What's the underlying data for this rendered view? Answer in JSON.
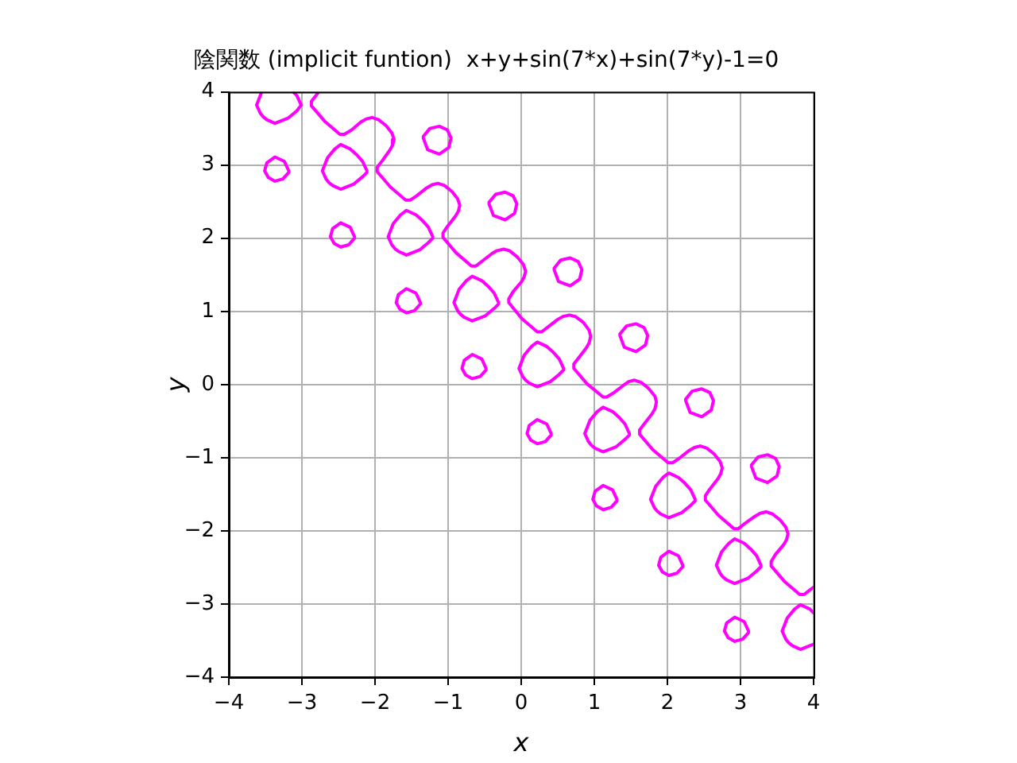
{
  "chart_data": {
    "type": "line",
    "title": "陰関数 (implicit funtion)  x+y+sin(7*x)+sin(7*y)-1=0",
    "xlabel": "x",
    "ylabel": "y",
    "xlim": [
      -4,
      4
    ],
    "ylim": [
      -4,
      4
    ],
    "xticks": [
      {
        "value": -4,
        "label": "−4"
      },
      {
        "value": -3,
        "label": "−3"
      },
      {
        "value": -2,
        "label": "−2"
      },
      {
        "value": -1,
        "label": "−1"
      },
      0,
      1,
      2,
      3,
      4
    ],
    "yticks": [
      {
        "value": -4,
        "label": "−4"
      },
      {
        "value": -3,
        "label": "−3"
      },
      {
        "value": -2,
        "label": "−2"
      },
      {
        "value": -1,
        "label": "−1"
      },
      0,
      1,
      2,
      3,
      4
    ],
    "grid": true,
    "marker": "none",
    "line_style": "solid",
    "series": [
      {
        "color": "#ff00ff",
        "x": [
          -2.77,
          -2.8,
          -2.87,
          -2.87,
          -2.69,
          -2.48,
          -2.42,
          -2.32,
          -2.19,
          -2.12,
          -2.04,
          -1.95,
          -1.85,
          -1.77,
          -1.74,
          -1.76,
          -1.8,
          -1.9,
          -1.97,
          -1.97,
          -1.79,
          -1.58,
          -1.52,
          -1.43,
          -1.29,
          -1.22,
          -1.14,
          -1.05,
          -0.95,
          -0.87,
          -0.84,
          -0.86,
          -0.9,
          -1.01,
          -1.07,
          -1.07,
          -0.89,
          -0.68,
          -0.62,
          -0.53,
          -0.4,
          -0.33,
          -0.24,
          -0.16,
          -0.05,
          0.03,
          0.06,
          0.04,
          0.0,
          -0.11,
          -0.17,
          -0.17,
          0.01,
          0.22,
          0.28,
          0.37,
          0.5,
          0.57,
          0.66,
          0.74,
          0.85,
          0.93,
          0.95,
          0.93,
          0.89,
          0.79,
          0.72,
          0.72,
          0.9,
          1.12,
          1.17,
          1.27,
          1.4,
          1.47,
          1.55,
          1.64,
          1.74,
          1.83,
          1.85,
          1.83,
          1.79,
          1.69,
          1.62,
          1.62,
          1.8,
          2.01,
          2.07,
          2.16,
          2.3,
          2.37,
          2.45,
          2.54,
          2.64,
          2.72,
          2.75,
          2.73,
          2.69,
          2.58,
          2.52,
          2.52,
          2.7,
          2.91,
          2.97,
          3.06,
          3.2,
          3.27,
          3.35,
          3.44,
          3.54,
          3.62,
          3.65,
          3.63,
          3.59,
          3.48,
          3.42,
          3.42,
          3.6,
          3.81,
          3.87,
          3.96,
          4.0
        ],
        "values": [
          4.0,
          3.96,
          3.87,
          3.81,
          3.6,
          3.42,
          3.42,
          3.48,
          3.59,
          3.63,
          3.65,
          3.62,
          3.54,
          3.44,
          3.35,
          3.27,
          3.2,
          3.06,
          2.97,
          2.91,
          2.7,
          2.52,
          2.52,
          2.58,
          2.69,
          2.73,
          2.75,
          2.72,
          2.64,
          2.54,
          2.45,
          2.37,
          2.3,
          2.16,
          2.07,
          2.01,
          1.8,
          1.62,
          1.62,
          1.69,
          1.79,
          1.83,
          1.85,
          1.83,
          1.74,
          1.64,
          1.55,
          1.47,
          1.4,
          1.27,
          1.17,
          1.12,
          0.9,
          0.72,
          0.72,
          0.79,
          0.89,
          0.93,
          0.95,
          0.93,
          0.85,
          0.74,
          0.66,
          0.57,
          0.5,
          0.37,
          0.28,
          0.22,
          0.01,
          -0.17,
          -0.17,
          -0.11,
          -0.01,
          0.04,
          0.06,
          0.03,
          -0.05,
          -0.16,
          -0.24,
          -0.33,
          -0.4,
          -0.53,
          -0.62,
          -0.68,
          -0.89,
          -1.07,
          -1.07,
          -1.01,
          -0.9,
          -0.86,
          -0.84,
          -0.87,
          -0.95,
          -1.05,
          -1.14,
          -1.22,
          -1.29,
          -1.43,
          -1.52,
          -1.58,
          -1.79,
          -1.97,
          -1.97,
          -1.9,
          -1.8,
          -1.76,
          -1.74,
          -1.77,
          -1.85,
          -1.95,
          -2.04,
          -2.12,
          -2.19,
          -2.32,
          -2.42,
          -2.48,
          -2.69,
          -2.87,
          -2.87,
          -2.8,
          -2.77
        ]
      },
      {
        "color": "#ff00ff",
        "x": [
          -3.55,
          -3.62,
          -3.57,
          -3.53,
          -3.48,
          -3.37,
          -3.19,
          -3.07,
          -3.01,
          -3.07,
          -3.12
        ],
        "values": [
          4.0,
          3.82,
          3.71,
          3.66,
          3.62,
          3.57,
          3.64,
          3.74,
          3.82,
          3.95,
          4.0
        ]
      },
      {
        "color": "#ff00ff",
        "x": [
          -2.11,
          -2.17,
          -2.25,
          -2.34,
          -2.47,
          -2.55,
          -2.65,
          -2.72,
          -2.67,
          -2.63,
          -2.58,
          -2.47,
          -2.29,
          -2.17,
          -2.11
        ],
        "values": [
          2.92,
          3.05,
          3.14,
          3.22,
          3.28,
          3.22,
          3.1,
          2.92,
          2.81,
          2.76,
          2.72,
          2.67,
          2.74,
          2.84,
          2.9
        ]
      },
      {
        "color": "#ff00ff",
        "x": [
          -1.21,
          -1.27,
          -1.35,
          -1.44,
          -1.57,
          -1.65,
          -1.75,
          -1.82,
          -1.77,
          -1.73,
          -1.68,
          -1.57,
          -1.39,
          -1.27,
          -1.21
        ],
        "values": [
          2.02,
          2.15,
          2.24,
          2.32,
          2.38,
          2.32,
          2.2,
          2.02,
          1.91,
          1.86,
          1.82,
          1.77,
          1.84,
          1.94,
          2.0
        ]
      },
      {
        "color": "#ff00ff",
        "x": [
          -0.31,
          -0.37,
          -0.45,
          -0.54,
          -0.67,
          -0.75,
          -0.85,
          -0.92,
          -0.87,
          -0.83,
          -0.78,
          -0.67,
          -0.49,
          -0.37,
          -0.31
        ],
        "values": [
          1.12,
          1.25,
          1.34,
          1.42,
          1.48,
          1.42,
          1.3,
          1.12,
          1.01,
          0.96,
          0.92,
          0.87,
          0.94,
          1.04,
          1.1
        ]
      },
      {
        "color": "#ff00ff",
        "x": [
          0.58,
          0.52,
          0.44,
          0.35,
          0.22,
          0.14,
          0.04,
          -0.03,
          0.02,
          0.06,
          0.11,
          0.22,
          0.4,
          0.52,
          0.58
        ],
        "values": [
          0.22,
          0.35,
          0.44,
          0.52,
          0.58,
          0.52,
          0.4,
          0.22,
          0.11,
          0.06,
          0.02,
          -0.03,
          0.04,
          0.14,
          0.2
        ]
      },
      {
        "color": "#ff00ff",
        "x": [
          1.48,
          1.42,
          1.34,
          1.25,
          1.12,
          1.04,
          0.94,
          0.87,
          0.92,
          0.96,
          1.01,
          1.12,
          1.3,
          1.42,
          1.48
        ],
        "values": [
          -0.67,
          -0.54,
          -0.45,
          -0.37,
          -0.31,
          -0.37,
          -0.49,
          -0.67,
          -0.78,
          -0.83,
          -0.87,
          -0.92,
          -0.85,
          -0.75,
          -0.69
        ]
      },
      {
        "color": "#ff00ff",
        "x": [
          2.38,
          2.32,
          2.24,
          2.15,
          2.02,
          1.94,
          1.84,
          1.77,
          1.82,
          1.86,
          1.91,
          2.02,
          2.2,
          2.32,
          2.38
        ],
        "values": [
          -1.57,
          -1.44,
          -1.35,
          -1.27,
          -1.21,
          -1.27,
          -1.39,
          -1.57,
          -1.68,
          -1.73,
          -1.77,
          -1.82,
          -1.75,
          -1.65,
          -1.59
        ]
      },
      {
        "color": "#ff00ff",
        "x": [
          3.28,
          3.22,
          3.14,
          3.05,
          2.92,
          2.84,
          2.74,
          2.67,
          2.72,
          2.76,
          2.81,
          2.92,
          3.1,
          3.22,
          3.28
        ],
        "values": [
          -2.47,
          -2.34,
          -2.25,
          -2.17,
          -2.11,
          -2.17,
          -2.29,
          -2.47,
          -2.58,
          -2.63,
          -2.67,
          -2.72,
          -2.65,
          -2.55,
          -2.49
        ]
      },
      {
        "color": "#ff00ff",
        "x": [
          4.0,
          3.95,
          3.82,
          3.74,
          3.64,
          3.57,
          3.62,
          3.66,
          3.71,
          3.82,
          4.0
        ],
        "values": [
          -3.12,
          -3.07,
          -3.01,
          -3.07,
          -3.19,
          -3.37,
          -3.48,
          -3.53,
          -3.57,
          -3.62,
          -3.55
        ]
      },
      {
        "color": "#ff00ff",
        "x": [
          -3.18,
          -3.24,
          -3.37,
          -3.48,
          -3.51,
          -3.46,
          -3.37,
          -3.26,
          -3.18
        ],
        "values": [
          2.92,
          3.05,
          3.11,
          3.03,
          2.92,
          2.83,
          2.78,
          2.81,
          2.9
        ]
      },
      {
        "color": "#ff00ff",
        "x": [
          -2.28,
          -2.34,
          -2.47,
          -2.58,
          -2.61,
          -2.56,
          -2.47,
          -2.36,
          -2.28
        ],
        "values": [
          2.02,
          2.15,
          2.21,
          2.13,
          2.02,
          1.93,
          1.88,
          1.91,
          2.0
        ]
      },
      {
        "color": "#ff00ff",
        "x": [
          -1.38,
          -1.44,
          -1.57,
          -1.68,
          -1.71,
          -1.66,
          -1.57,
          -1.46,
          -1.38
        ],
        "values": [
          1.12,
          1.25,
          1.31,
          1.23,
          1.12,
          1.03,
          0.98,
          1.01,
          1.1
        ]
      },
      {
        "color": "#ff00ff",
        "x": [
          -0.48,
          -0.54,
          -0.67,
          -0.78,
          -0.81,
          -0.76,
          -0.67,
          -0.56,
          -0.48
        ],
        "values": [
          0.22,
          0.35,
          0.41,
          0.33,
          0.22,
          0.13,
          0.08,
          0.11,
          0.2
        ]
      },
      {
        "color": "#ff00ff",
        "x": [
          0.41,
          0.35,
          0.22,
          0.11,
          0.08,
          0.13,
          0.22,
          0.33,
          0.41
        ],
        "values": [
          -0.67,
          -0.54,
          -0.48,
          -0.56,
          -0.67,
          -0.76,
          -0.81,
          -0.78,
          -0.69
        ]
      },
      {
        "color": "#ff00ff",
        "x": [
          1.31,
          1.25,
          1.12,
          1.01,
          0.98,
          1.03,
          1.12,
          1.23,
          1.31
        ],
        "values": [
          -1.57,
          -1.44,
          -1.38,
          -1.46,
          -1.57,
          -1.66,
          -1.71,
          -1.68,
          -1.59
        ]
      },
      {
        "color": "#ff00ff",
        "x": [
          2.21,
          2.15,
          2.02,
          1.91,
          1.88,
          1.93,
          2.02,
          2.13,
          2.21
        ],
        "values": [
          -2.47,
          -2.34,
          -2.28,
          -2.36,
          -2.47,
          -2.56,
          -2.61,
          -2.58,
          -2.49
        ]
      },
      {
        "color": "#ff00ff",
        "x": [
          3.11,
          3.05,
          2.92,
          2.81,
          2.78,
          2.83,
          2.92,
          3.03,
          3.11
        ],
        "values": [
          -3.37,
          -3.24,
          -3.18,
          -3.26,
          -3.37,
          -3.46,
          -3.51,
          -3.48,
          -3.39
        ]
      },
      {
        "color": "#ff00ff",
        "x": [
          -1.34,
          -1.28,
          -1.12,
          -0.99,
          -0.96,
          -1.01,
          -1.12,
          -1.25,
          -1.34
        ],
        "values": [
          3.37,
          3.21,
          3.15,
          3.24,
          3.37,
          3.48,
          3.53,
          3.5,
          3.39
        ]
      },
      {
        "color": "#ff00ff",
        "x": [
          -0.44,
          -0.38,
          -0.22,
          -0.09,
          -0.06,
          -0.11,
          -0.22,
          -0.35,
          -0.44
        ],
        "values": [
          2.47,
          2.31,
          2.25,
          2.34,
          2.47,
          2.58,
          2.63,
          2.6,
          2.49
        ]
      },
      {
        "color": "#ff00ff",
        "x": [
          0.45,
          0.51,
          0.67,
          0.8,
          0.83,
          0.78,
          0.67,
          0.54,
          0.45
        ],
        "values": [
          1.57,
          1.41,
          1.35,
          1.44,
          1.57,
          1.68,
          1.73,
          1.7,
          1.59
        ]
      },
      {
        "color": "#ff00ff",
        "x": [
          1.35,
          1.41,
          1.57,
          1.7,
          1.73,
          1.68,
          1.57,
          1.44,
          1.35
        ],
        "values": [
          0.67,
          0.51,
          0.45,
          0.54,
          0.67,
          0.78,
          0.83,
          0.8,
          0.69
        ]
      },
      {
        "color": "#ff00ff",
        "x": [
          2.25,
          2.31,
          2.47,
          2.6,
          2.63,
          2.58,
          2.47,
          2.34,
          2.25
        ],
        "values": [
          -0.22,
          -0.38,
          -0.44,
          -0.35,
          -0.22,
          -0.11,
          -0.06,
          -0.09,
          -0.2
        ]
      },
      {
        "color": "#ff00ff",
        "x": [
          3.15,
          3.21,
          3.37,
          3.5,
          3.53,
          3.48,
          3.37,
          3.24,
          3.15
        ],
        "values": [
          -1.12,
          -1.28,
          -1.34,
          -1.25,
          -1.12,
          -1.01,
          -0.96,
          -0.99,
          -1.1
        ]
      }
    ]
  }
}
